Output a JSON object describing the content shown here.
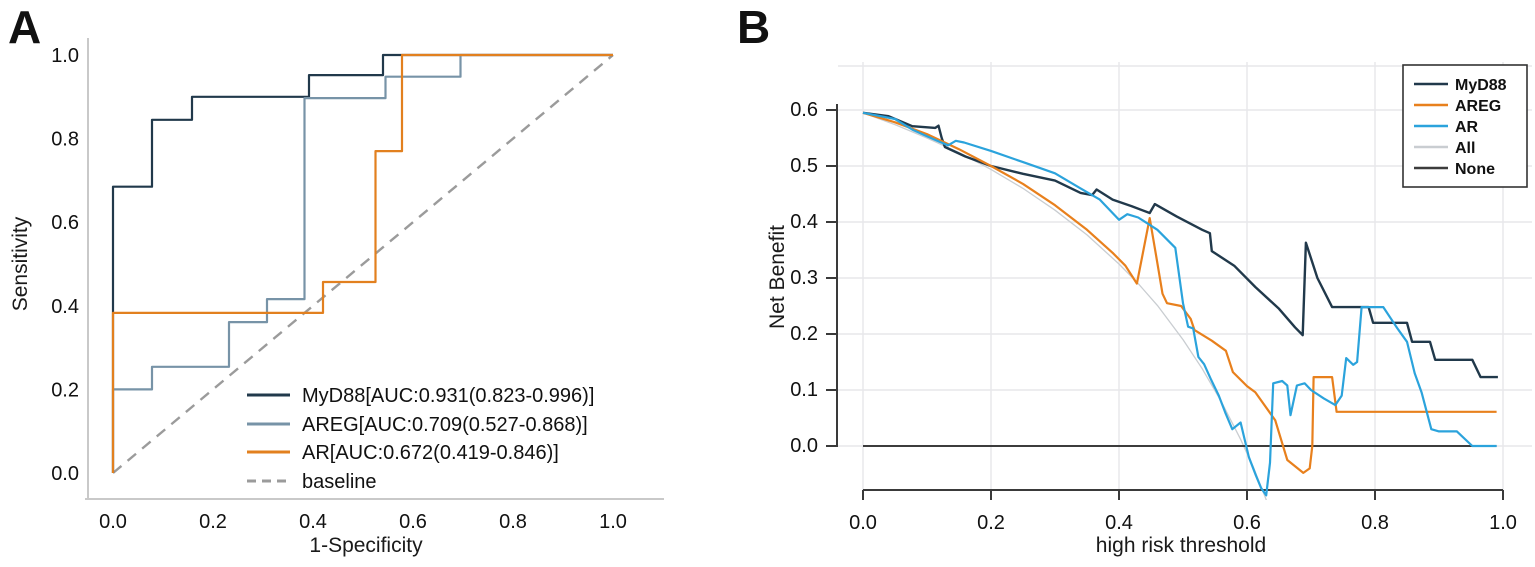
{
  "figure": {
    "panel_a_letter": "A",
    "panel_b_letter": "B"
  },
  "chart_data": [
    {
      "id": "roc",
      "type": "line",
      "title": "",
      "xlabel": "1-Specificity",
      "ylabel": "Sensitivity",
      "xlim": [
        0,
        1
      ],
      "ylim": [
        0,
        1
      ],
      "xticks": [
        0.0,
        0.2,
        0.4,
        0.6,
        0.8,
        1.0
      ],
      "yticks": [
        0.0,
        0.2,
        0.4,
        0.6,
        0.8,
        1.0
      ],
      "grid": false,
      "legend_position": "lower-right-inside",
      "series": [
        {
          "name": "MyD88",
          "label": "MyD88[AUC:0.931(0.823-0.996)]",
          "color": "#21394b",
          "width": 2.2,
          "z": 1,
          "auc": 0.931,
          "auc_ci": [
            0.823,
            0.996
          ],
          "points": [
            [
              0,
              0
            ],
            [
              0,
              0.685
            ],
            [
              0.078,
              0.685
            ],
            [
              0.078,
              0.845
            ],
            [
              0.158,
              0.845
            ],
            [
              0.158,
              0.9
            ],
            [
              0.392,
              0.9
            ],
            [
              0.392,
              0.952
            ],
            [
              0.54,
              0.952
            ],
            [
              0.54,
              1.0
            ],
            [
              1.0,
              1.0
            ]
          ]
        },
        {
          "name": "AREG",
          "label": "AREG[AUC:0.709(0.527-0.868)]",
          "color": "#7793a7",
          "width": 2.2,
          "z": 2,
          "auc": 0.709,
          "auc_ci": [
            0.527,
            0.868
          ],
          "points": [
            [
              0,
              0
            ],
            [
              0,
              0.2
            ],
            [
              0.078,
              0.2
            ],
            [
              0.078,
              0.254
            ],
            [
              0.232,
              0.254
            ],
            [
              0.232,
              0.361
            ],
            [
              0.308,
              0.361
            ],
            [
              0.308,
              0.416
            ],
            [
              0.383,
              0.416
            ],
            [
              0.383,
              0.897
            ],
            [
              0.545,
              0.897
            ],
            [
              0.545,
              0.948
            ],
            [
              0.695,
              0.948
            ],
            [
              0.695,
              1.0
            ],
            [
              1.0,
              1.0
            ]
          ]
        },
        {
          "name": "AR",
          "label": "AR[AUC:0.672(0.419-0.846)]",
          "color": "#e2801f",
          "width": 2.2,
          "z": 3,
          "auc": 0.672,
          "auc_ci": [
            0.419,
            0.846
          ],
          "points": [
            [
              0,
              0
            ],
            [
              0,
              0.383
            ],
            [
              0.42,
              0.383
            ],
            [
              0.42,
              0.457
            ],
            [
              0.525,
              0.457
            ],
            [
              0.525,
              0.77
            ],
            [
              0.578,
              0.77
            ],
            [
              0.578,
              1.0
            ],
            [
              1.0,
              1.0
            ]
          ]
        },
        {
          "name": "baseline",
          "label": "baseline",
          "color": "#9b9b9b",
          "width": 2.4,
          "dash": "11,8",
          "z": 0,
          "points": [
            [
              0,
              0
            ],
            [
              1,
              1
            ]
          ]
        }
      ]
    },
    {
      "id": "dca",
      "type": "line",
      "title": "",
      "xlabel": "high risk threshold",
      "ylabel": "Net Benefit",
      "xlim": [
        0,
        1
      ],
      "ylim": [
        -0.09,
        0.68
      ],
      "xticks": [
        0.0,
        0.2,
        0.4,
        0.6,
        0.8,
        1.0
      ],
      "yticks": [
        0.0,
        0.1,
        0.2,
        0.3,
        0.4,
        0.5,
        0.6
      ],
      "grid": true,
      "legend_position": "upper-right-boxed",
      "series": [
        {
          "name": "MyD88",
          "label": "MyD88",
          "color": "#21394b",
          "width": 2.4,
          "z": 2,
          "points": [
            [
              0,
              0.595
            ],
            [
              0.04,
              0.589
            ],
            [
              0.077,
              0.571
            ],
            [
              0.113,
              0.568
            ],
            [
              0.118,
              0.572
            ],
            [
              0.123,
              0.55
            ],
            [
              0.128,
              0.534
            ],
            [
              0.16,
              0.517
            ],
            [
              0.2,
              0.5
            ],
            [
              0.25,
              0.486
            ],
            [
              0.3,
              0.474
            ],
            [
              0.34,
              0.452
            ],
            [
              0.358,
              0.448
            ],
            [
              0.365,
              0.458
            ],
            [
              0.39,
              0.44
            ],
            [
              0.42,
              0.428
            ],
            [
              0.448,
              0.416
            ],
            [
              0.456,
              0.432
            ],
            [
              0.49,
              0.41
            ],
            [
              0.53,
              0.386
            ],
            [
              0.542,
              0.38
            ],
            [
              0.545,
              0.348
            ],
            [
              0.58,
              0.322
            ],
            [
              0.613,
              0.284
            ],
            [
              0.65,
              0.245
            ],
            [
              0.675,
              0.212
            ],
            [
              0.687,
              0.198
            ],
            [
              0.692,
              0.363
            ],
            [
              0.71,
              0.3
            ],
            [
              0.733,
              0.248
            ],
            [
              0.79,
              0.248
            ],
            [
              0.797,
              0.22
            ],
            [
              0.85,
              0.22
            ],
            [
              0.858,
              0.186
            ],
            [
              0.886,
              0.186
            ],
            [
              0.894,
              0.154
            ],
            [
              0.952,
              0.154
            ],
            [
              0.965,
              0.123
            ],
            [
              0.992,
              0.123
            ]
          ]
        },
        {
          "name": "AREG",
          "label": "AREG",
          "color": "#e8801d",
          "width": 2.2,
          "z": 3,
          "points": [
            [
              0,
              0.595
            ],
            [
              0.05,
              0.578
            ],
            [
              0.1,
              0.557
            ],
            [
              0.15,
              0.53
            ],
            [
              0.2,
              0.5
            ],
            [
              0.25,
              0.468
            ],
            [
              0.3,
              0.43
            ],
            [
              0.35,
              0.386
            ],
            [
              0.39,
              0.345
            ],
            [
              0.41,
              0.322
            ],
            [
              0.428,
              0.29
            ],
            [
              0.448,
              0.407
            ],
            [
              0.458,
              0.34
            ],
            [
              0.468,
              0.272
            ],
            [
              0.475,
              0.255
            ],
            [
              0.497,
              0.25
            ],
            [
              0.512,
              0.227
            ],
            [
              0.518,
              0.207
            ],
            [
              0.545,
              0.188
            ],
            [
              0.567,
              0.17
            ],
            [
              0.578,
              0.132
            ],
            [
              0.6,
              0.107
            ],
            [
              0.613,
              0.096
            ],
            [
              0.644,
              0.046
            ],
            [
              0.663,
              -0.025
            ],
            [
              0.688,
              -0.048
            ],
            [
              0.698,
              -0.04
            ],
            [
              0.702,
              0.0
            ],
            [
              0.704,
              0.123
            ],
            [
              0.733,
              0.123
            ],
            [
              0.74,
              0.061
            ],
            [
              0.99,
              0.061
            ]
          ]
        },
        {
          "name": "AR",
          "label": "AR",
          "color": "#2ba3dc",
          "width": 2.2,
          "z": 4,
          "points": [
            [
              0,
              0.595
            ],
            [
              0.05,
              0.584
            ],
            [
              0.077,
              0.565
            ],
            [
              0.1,
              0.553
            ],
            [
              0.12,
              0.543
            ],
            [
              0.133,
              0.537
            ],
            [
              0.145,
              0.545
            ],
            [
              0.158,
              0.542
            ],
            [
              0.2,
              0.527
            ],
            [
              0.25,
              0.507
            ],
            [
              0.3,
              0.487
            ],
            [
              0.34,
              0.46
            ],
            [
              0.37,
              0.44
            ],
            [
              0.4,
              0.404
            ],
            [
              0.413,
              0.414
            ],
            [
              0.43,
              0.408
            ],
            [
              0.46,
              0.386
            ],
            [
              0.488,
              0.354
            ],
            [
              0.5,
              0.255
            ],
            [
              0.508,
              0.213
            ],
            [
              0.516,
              0.21
            ],
            [
              0.524,
              0.159
            ],
            [
              0.533,
              0.146
            ],
            [
              0.544,
              0.118
            ],
            [
              0.556,
              0.09
            ],
            [
              0.566,
              0.06
            ],
            [
              0.577,
              0.03
            ],
            [
              0.59,
              0.042
            ],
            [
              0.603,
              -0.02
            ],
            [
              0.614,
              -0.053
            ],
            [
              0.622,
              -0.075
            ],
            [
              0.63,
              -0.088
            ],
            [
              0.636,
              -0.03
            ],
            [
              0.641,
              0.112
            ],
            [
              0.655,
              0.116
            ],
            [
              0.663,
              0.108
            ],
            [
              0.668,
              0.055
            ],
            [
              0.678,
              0.108
            ],
            [
              0.69,
              0.112
            ],
            [
              0.7,
              0.1
            ],
            [
              0.72,
              0.085
            ],
            [
              0.738,
              0.073
            ],
            [
              0.748,
              0.09
            ],
            [
              0.755,
              0.157
            ],
            [
              0.766,
              0.145
            ],
            [
              0.772,
              0.15
            ],
            [
              0.779,
              0.248
            ],
            [
              0.813,
              0.248
            ],
            [
              0.835,
              0.21
            ],
            [
              0.85,
              0.186
            ],
            [
              0.862,
              0.13
            ],
            [
              0.873,
              0.095
            ],
            [
              0.888,
              0.03
            ],
            [
              0.9,
              0.026
            ],
            [
              0.928,
              0.026
            ],
            [
              0.952,
              0.0
            ],
            [
              0.99,
              0.0
            ]
          ]
        },
        {
          "name": "All",
          "label": "All",
          "color": "#c9cdd1",
          "width": 1.3,
          "z": 0,
          "points": [
            [
              0,
              0.595
            ],
            [
              0.05,
              0.574
            ],
            [
              0.1,
              0.55
            ],
            [
              0.15,
              0.524
            ],
            [
              0.2,
              0.494
            ],
            [
              0.25,
              0.46
            ],
            [
              0.3,
              0.421
            ],
            [
              0.35,
              0.377
            ],
            [
              0.4,
              0.325
            ],
            [
              0.43,
              0.29
            ],
            [
              0.46,
              0.251
            ],
            [
              0.5,
              0.19
            ],
            [
              0.53,
              0.138
            ],
            [
              0.56,
              0.079
            ],
            [
              0.59,
              0.012
            ],
            [
              0.61,
              -0.038
            ],
            [
              0.628,
              -0.09
            ],
            [
              0.633,
              -0.105
            ]
          ]
        },
        {
          "name": "None",
          "label": "None",
          "color": "#3c3c3c",
          "width": 2,
          "z": 1,
          "points": [
            [
              0,
              0
            ],
            [
              0.99,
              0
            ]
          ]
        }
      ]
    }
  ]
}
